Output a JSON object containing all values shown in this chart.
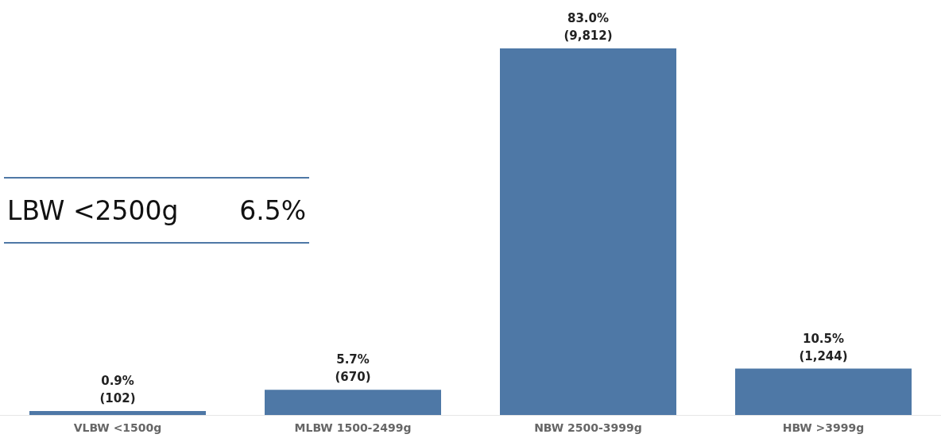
{
  "chart_data": {
    "type": "bar",
    "categories": [
      "VLBW <1500g",
      "MLBW 1500-2499g",
      "NBW 2500-3999g",
      "HBW >3999g"
    ],
    "values": [
      0.9,
      5.7,
      83.0,
      10.5
    ],
    "value_labels": [
      "0.9%\n(102)",
      "5.7%\n(670)",
      "83.0%\n(9,812)",
      "10.5%\n(1,244)"
    ],
    "color": "#4e78a6",
    "annotations": [
      "LBW <2500g",
      "6.5%"
    ]
  }
}
